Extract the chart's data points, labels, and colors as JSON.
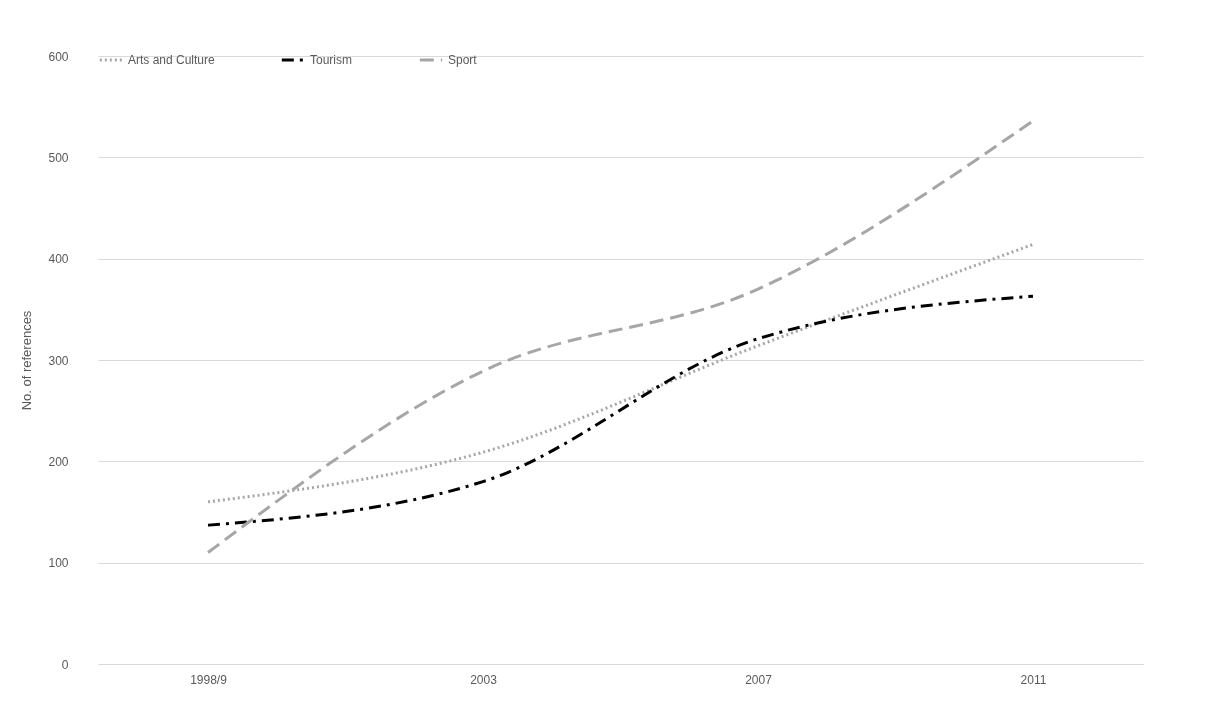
{
  "chart_data": {
    "type": "line",
    "ylabel": "No. of references",
    "categories": [
      "1998/9",
      "2003",
      "2007",
      "2011"
    ],
    "series": [
      {
        "name": "Arts and Culture",
        "color": "#a6a6a6",
        "line_style": "dotted",
        "values": [
          160,
          209,
          314,
          414
        ]
      },
      {
        "name": "Tourism",
        "color": "#000000",
        "line_style": "dashdot",
        "values": [
          137,
          180,
          321,
          363
        ]
      },
      {
        "name": "Sport",
        "color": "#a6a6a6",
        "line_style": "dashed",
        "values": [
          110,
          289,
          370,
          536
        ]
      }
    ],
    "ylim": [
      0,
      600
    ],
    "yticks": [
      0,
      100,
      200,
      300,
      400,
      500,
      600
    ],
    "grid": "y",
    "legend": "top"
  }
}
